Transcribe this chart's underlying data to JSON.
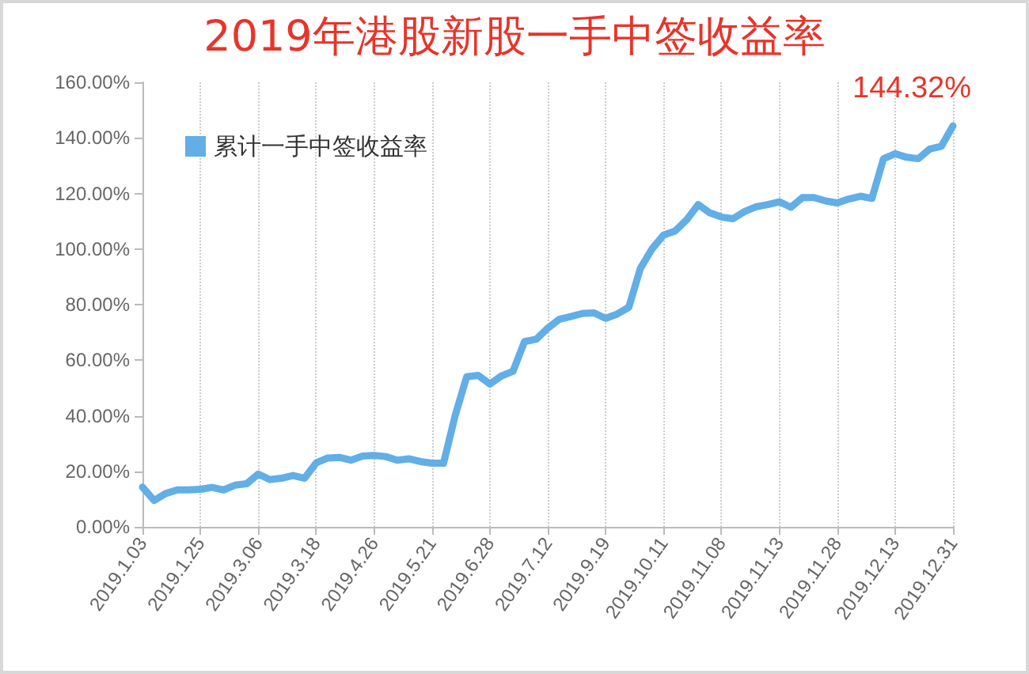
{
  "chart_data": {
    "type": "line",
    "title": "2019年港股新股一手中签收益率",
    "categories": [
      "2019.1.03",
      null,
      null,
      null,
      null,
      "2019.1.25",
      null,
      null,
      null,
      null,
      "2019.3.06",
      null,
      null,
      null,
      null,
      "2019.3.18",
      null,
      null,
      null,
      null,
      "2019.4.26",
      null,
      null,
      null,
      null,
      "2019.5.21",
      null,
      null,
      null,
      null,
      "2019.6.28",
      null,
      null,
      null,
      null,
      "2019.7.12",
      null,
      null,
      null,
      null,
      "2019.9.19",
      null,
      null,
      null,
      null,
      "2019.10.11",
      null,
      null,
      null,
      null,
      "2019.11.08",
      null,
      null,
      null,
      null,
      "2019.11.13",
      null,
      null,
      null,
      null,
      "2019.11.28",
      null,
      null,
      null,
      null,
      "2019.12.13",
      null,
      null,
      null,
      null,
      "2019.12.31"
    ],
    "series": [
      {
        "name": "累计一手中签收益率",
        "color": "#62aee6",
        "values": [
          14.3,
          9.5,
          12,
          13.3,
          13.3,
          13.5,
          14.2,
          13.3,
          15,
          15.5,
          19,
          17,
          17.5,
          18.5,
          17.5,
          23,
          24.8,
          25,
          24,
          25.5,
          25.7,
          25.3,
          24,
          24.5,
          23.5,
          22.9,
          22.9,
          40,
          54,
          54.5,
          51.4,
          54.3,
          56,
          66.7,
          67.5,
          71.5,
          74.7,
          75.7,
          76.8,
          77,
          75,
          76.6,
          79,
          93,
          100,
          105,
          106.5,
          110.5,
          116,
          113,
          111.5,
          110.9,
          113.5,
          115.2,
          116,
          117,
          115,
          118.5,
          118.5,
          117.3,
          116.6,
          118,
          119,
          118.2,
          132.5,
          134.3,
          133,
          132.5,
          136,
          137,
          144.32
        ],
        "value_labels": [
          null,
          null,
          null,
          null,
          null,
          null,
          null,
          null,
          null,
          null,
          null,
          null,
          null,
          null,
          null,
          null,
          null,
          null,
          null,
          null,
          null,
          null,
          null,
          null,
          null,
          null,
          null,
          null,
          null,
          null,
          null,
          null,
          null,
          null,
          null,
          null,
          null,
          null,
          null,
          null,
          null,
          null,
          null,
          null,
          null,
          null,
          null,
          null,
          null,
          null,
          null,
          null,
          null,
          null,
          null,
          null,
          null,
          null,
          null,
          null,
          null,
          null,
          null,
          null,
          null,
          null,
          null,
          null,
          null,
          null,
          "144.32%"
        ]
      }
    ],
    "ylim": [
      0,
      160
    ],
    "yticks": [
      {
        "value": 0,
        "label": "0.00%"
      },
      {
        "value": 20,
        "label": "20.00%"
      },
      {
        "value": 40,
        "label": "40.00%"
      },
      {
        "value": 60,
        "label": "60.00%"
      },
      {
        "value": 80,
        "label": "80.00%"
      },
      {
        "value": 100,
        "label": "100.00%"
      },
      {
        "value": 120,
        "label": "120.00%"
      },
      {
        "value": 140,
        "label": "140.00%"
      },
      {
        "value": 160,
        "label": "160.00%"
      }
    ],
    "grid": "x",
    "legend": "top left",
    "marker": "none",
    "line_style": "solid"
  }
}
